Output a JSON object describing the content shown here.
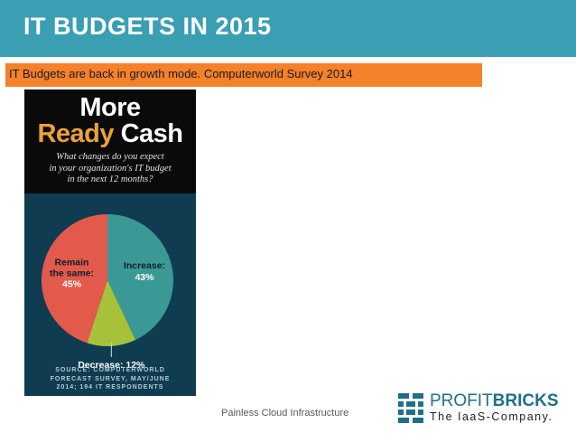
{
  "slide": {
    "title": "IT BUDGETS IN 2015",
    "subtitle": "IT Budgets are back in growth mode. Computerworld Survey 2014",
    "footer": "Painless Cloud Infrastructure"
  },
  "infographic": {
    "heading_line1": "More",
    "heading_word_accent": "Ready",
    "heading_word_plain": "Cash",
    "question_lines": [
      "What changes do you expect",
      "in your organization's IT budget",
      "in the next 12 months?"
    ],
    "source_lines": [
      "SOURCE: COMPUTERWORLD",
      "FORECAST SURVEY, MAY/JUNE",
      "2014; 194 IT RESPONDENTS"
    ]
  },
  "chart_data": {
    "type": "pie",
    "title": "What changes do you expect in your organization's IT budget in the next 12 months?",
    "slices": [
      {
        "label": "Increase:",
        "value": 43,
        "value_label": "43%",
        "color": "#3a9994"
      },
      {
        "label": "Decrease: 12%",
        "value": 12,
        "value_label": "",
        "color": "#a7c23a"
      },
      {
        "label": "Remain the same:",
        "value": 45,
        "value_label": "45%",
        "color": "#e35a4c"
      }
    ],
    "source": "Computerworld Forecast Survey, May/June 2014; 194 IT respondents"
  },
  "brand": {
    "name_part1": "PROFIT",
    "name_part2": "BRICKS",
    "tagline": "The IaaS-Company.",
    "logo_color": "#1f6f8b"
  }
}
